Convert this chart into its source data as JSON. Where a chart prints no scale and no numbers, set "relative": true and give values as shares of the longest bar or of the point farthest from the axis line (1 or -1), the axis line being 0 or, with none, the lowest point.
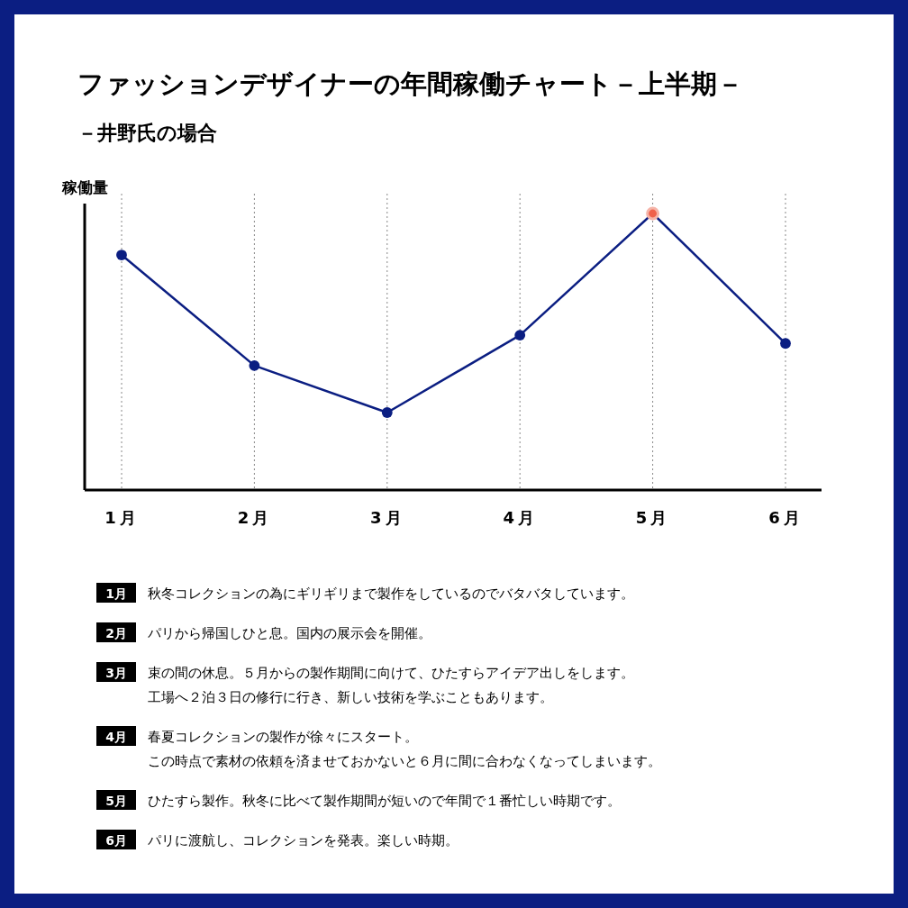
{
  "chart_data": {
    "type": "line",
    "title": "ファッションデザイナーの年間稼働チャート－上半期－",
    "subtitle": "－井野氏の場合",
    "ylabel": "稼働量",
    "relative": true,
    "grid": "x",
    "marker": "circle",
    "line_style": "solid",
    "categories": [
      "1月",
      "2月",
      "3月",
      "4月",
      "5月",
      "6月"
    ],
    "series": [
      {
        "color": "#0b1e82",
        "colors": [
          "#0b1e82",
          "#0b1e82",
          "#0b1e82",
          "#0b1e82",
          "#f0614a",
          "#0b1e82"
        ],
        "values": [
          0.85,
          0.45,
          0.28,
          0.56,
          1,
          0.53
        ]
      }
    ],
    "annotations": [
      "1月",
      "秋冬コレクションの為にギリギリまで製作をしているのでバタバタしています。",
      "2月",
      "パリから帰国しひと息。国内の展示会を開催。",
      "3月",
      "束の間の休息。５月からの製作期間に向けて、ひたすらアイデア出しをします。",
      "工場へ２泊３日の修行に行き、新しい技術を学ぶこともあります。",
      "4月",
      "春夏コレクションの製作が徐々にスタート。",
      "この時点で素材の依頼を済ませておかないと６月に間に合わなくなってしまいます。",
      "5月",
      "ひたすら製作。秋冬に比べて製作期間が短いので年間で１番忙しい時期です。",
      "6月",
      "パリに渡航し、コレクションを発表。楽しい時期。"
    ]
  }
}
